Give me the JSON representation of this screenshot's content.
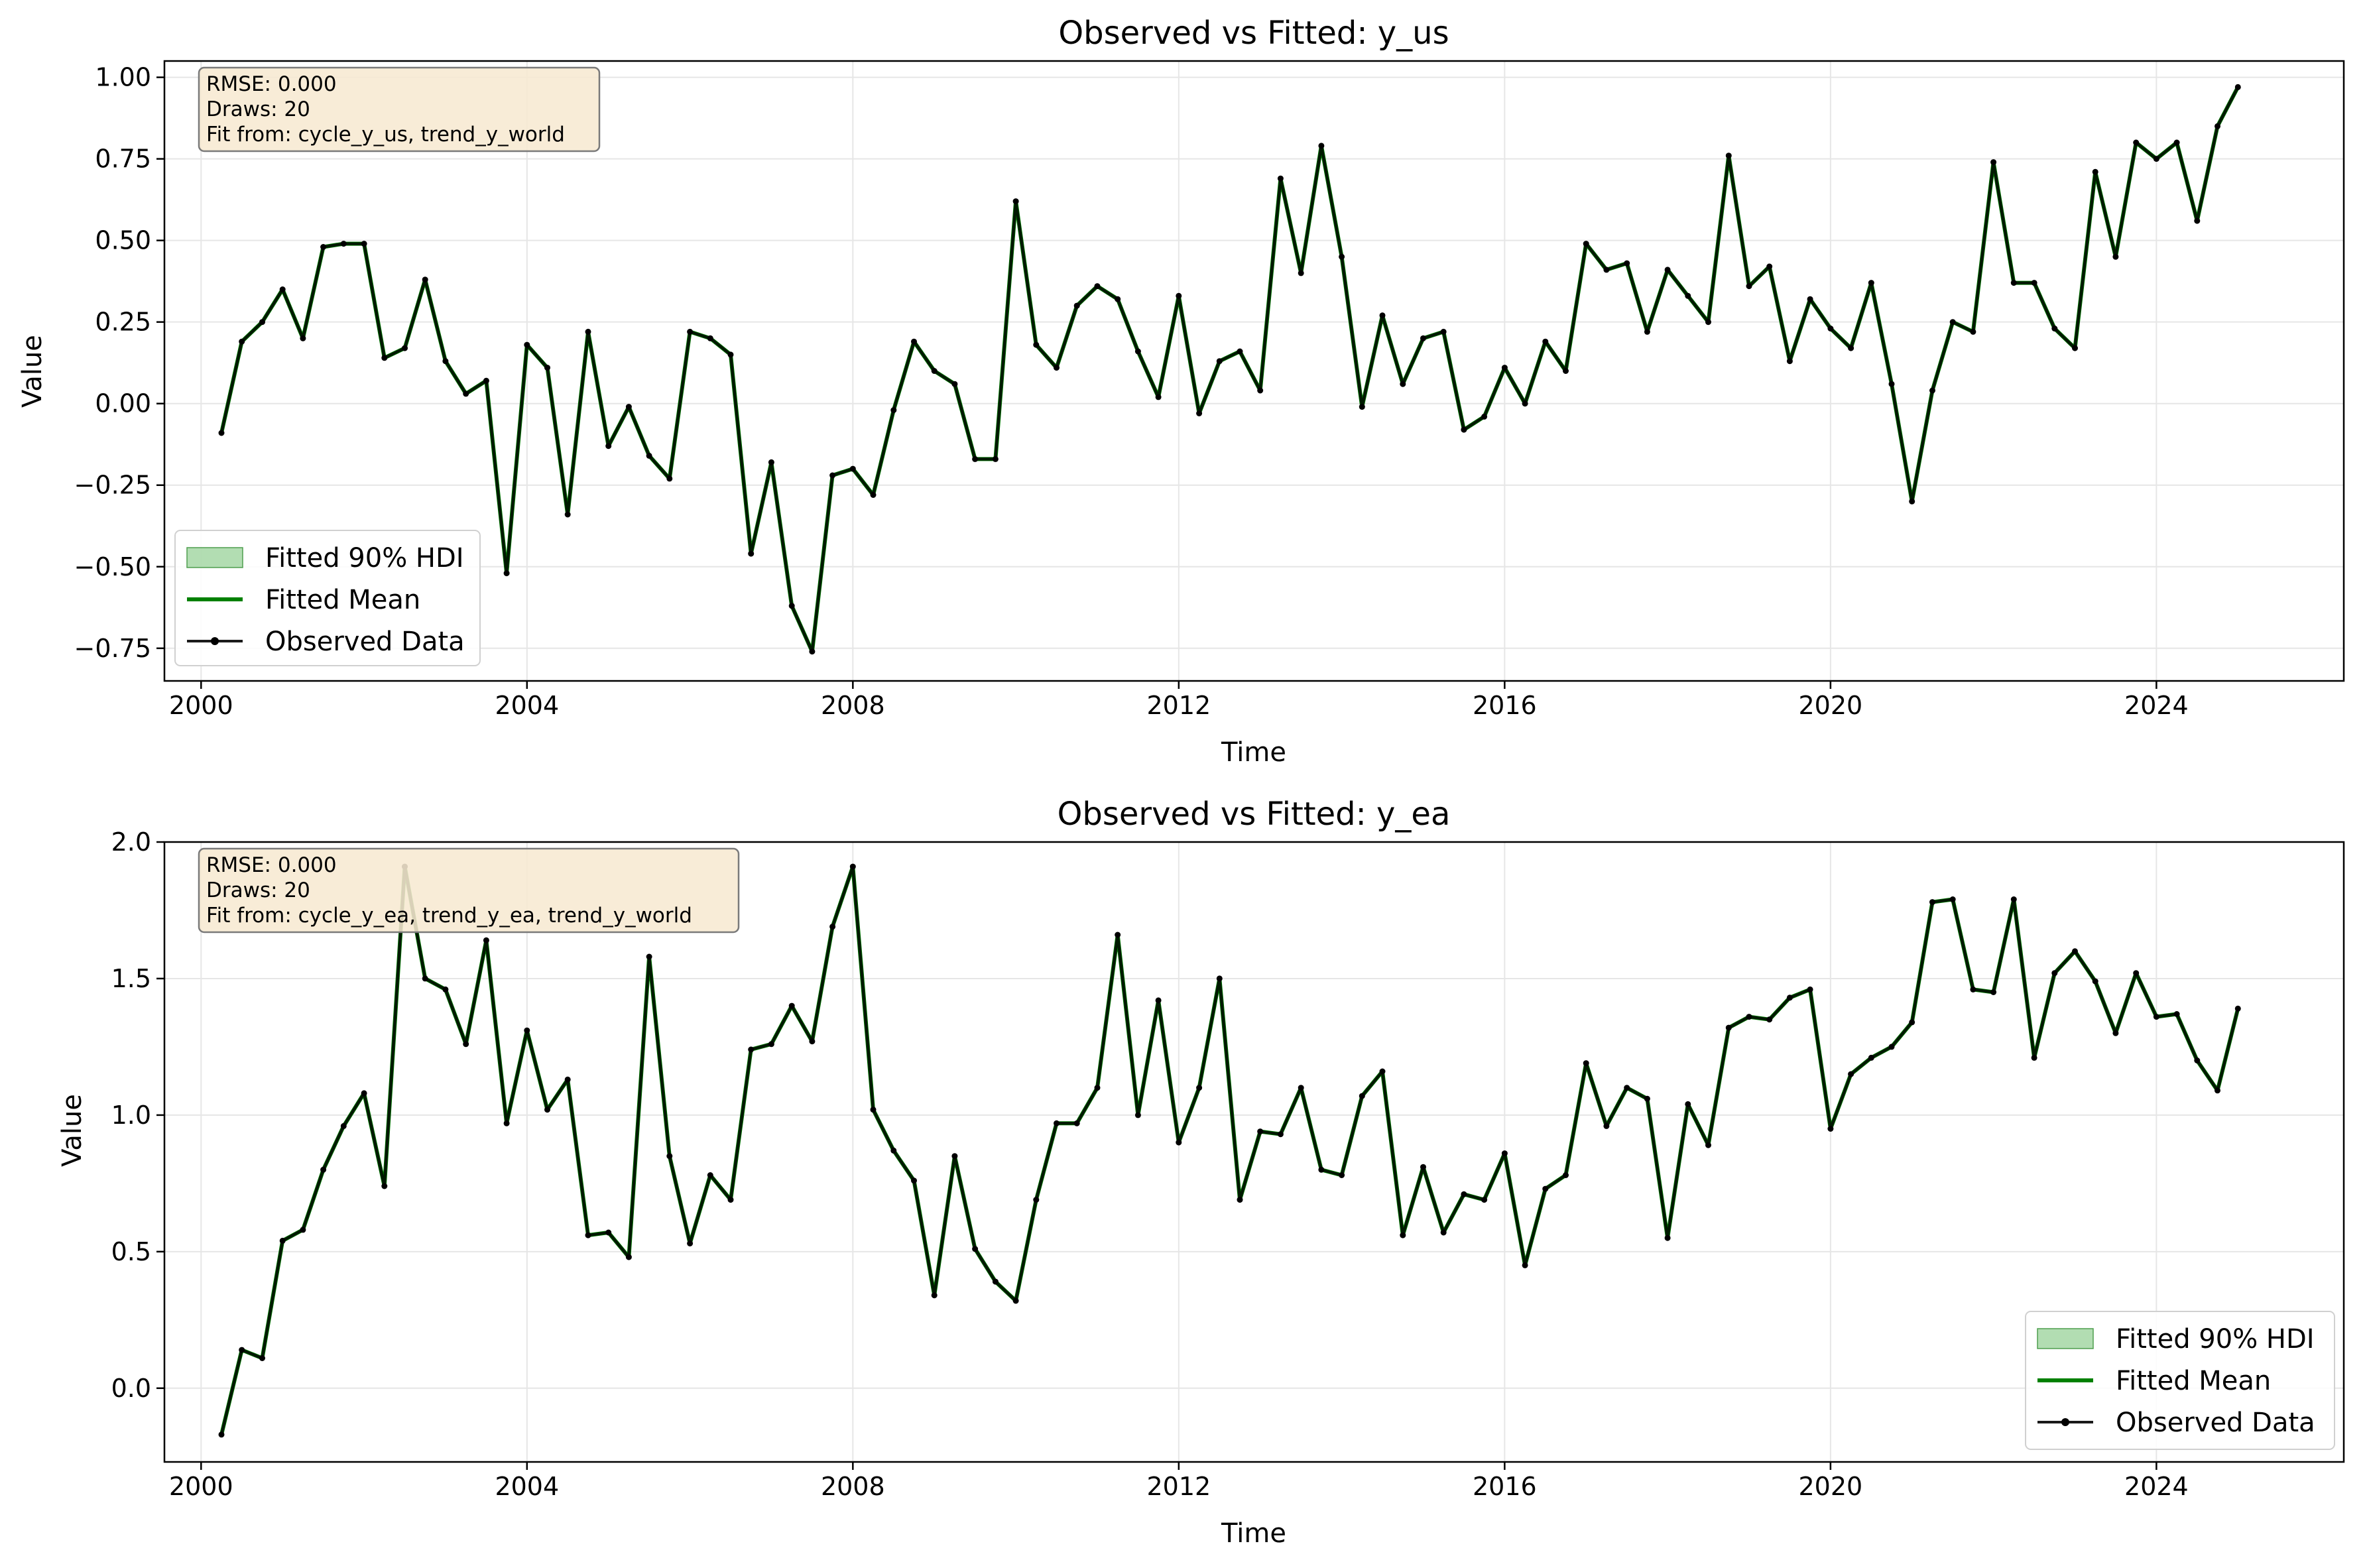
{
  "colors": {
    "fitted_mean": "#008000",
    "hdi_fill": "#7fc77f",
    "observed": "#000000",
    "grid": "#e6e6e6",
    "info_box_fill": "#f7e9d1",
    "info_box_edge": "#7a7a7a"
  },
  "chart_data": [
    {
      "type": "line",
      "title": "Observed vs Fitted: y_us",
      "xlabel": "Time",
      "ylabel": "Value",
      "xlim": [
        1999.55,
        2026.3
      ],
      "ylim": [
        -0.85,
        1.05
      ],
      "xticks": [
        2000,
        2004,
        2008,
        2012,
        2016,
        2020,
        2024
      ],
      "xtick_labels": [
        "2000",
        "2004",
        "2008",
        "2012",
        "2016",
        "2020",
        "2024"
      ],
      "yticks": [
        -0.75,
        -0.5,
        -0.25,
        0.0,
        0.25,
        0.5,
        0.75,
        1.0
      ],
      "ytick_labels": [
        "−0.75",
        "−0.50",
        "−0.25",
        "0.00",
        "0.25",
        "0.50",
        "0.75",
        "1.00"
      ],
      "grid": true,
      "legend_placement": "lower-left",
      "legend": [
        "Fitted 90% HDI",
        "Fitted Mean",
        "Observed Data"
      ],
      "info_box": [
        "RMSE: 0.000",
        "Draws: 20",
        "Fit from: cycle_y_us, trend_y_world"
      ],
      "x_start": 2000.25,
      "x_step": 0.25,
      "series": [
        {
          "name": "Observed Data",
          "values": [
            -0.09,
            0.19,
            0.25,
            0.35,
            0.2,
            0.48,
            0.49,
            0.49,
            0.14,
            0.17,
            0.38,
            0.13,
            0.03,
            0.07,
            -0.52,
            0.18,
            0.11,
            -0.34,
            0.22,
            -0.13,
            -0.01,
            -0.16,
            -0.23,
            0.22,
            0.2,
            0.15,
            -0.46,
            -0.18,
            -0.62,
            -0.76,
            -0.22,
            -0.2,
            -0.28,
            -0.02,
            0.19,
            0.1,
            0.06,
            -0.17,
            -0.17,
            0.62,
            0.18,
            0.11,
            0.3,
            0.36,
            0.32,
            0.16,
            0.02,
            0.33,
            -0.03,
            0.13,
            0.16,
            0.04,
            0.69,
            0.4,
            0.79,
            0.45,
            -0.01,
            0.27,
            0.06,
            0.2,
            0.22,
            -0.08,
            -0.04,
            0.11,
            -0.0,
            0.19,
            0.1,
            0.49,
            0.41,
            0.43,
            0.22,
            0.41,
            0.33,
            0.25,
            0.76,
            0.36,
            0.42,
            0.13,
            0.32,
            0.23,
            0.17,
            0.37,
            0.06,
            -0.3,
            0.04,
            0.25,
            0.22,
            0.74,
            0.37,
            0.37,
            0.23,
            0.17,
            0.71,
            0.45,
            0.8,
            0.75,
            0.8,
            0.56,
            0.85,
            0.97
          ]
        }
      ]
    },
    {
      "type": "line",
      "title": "Observed vs Fitted: y_ea",
      "xlabel": "Time",
      "ylabel": "Value",
      "xlim": [
        1999.55,
        2026.3
      ],
      "ylim": [
        -0.27,
        2.0
      ],
      "xticks": [
        2000,
        2004,
        2008,
        2012,
        2016,
        2020,
        2024
      ],
      "xtick_labels": [
        "2000",
        "2004",
        "2008",
        "2012",
        "2016",
        "2020",
        "2024"
      ],
      "yticks": [
        0.0,
        0.5,
        1.0,
        1.5,
        2.0
      ],
      "ytick_labels": [
        "0.0",
        "0.5",
        "1.0",
        "1.5",
        "2.0"
      ],
      "grid": true,
      "legend_placement": "lower-right",
      "legend": [
        "Fitted 90% HDI",
        "Fitted Mean",
        "Observed Data"
      ],
      "info_box": [
        "RMSE: 0.000",
        "Draws: 20",
        "Fit from: cycle_y_ea, trend_y_ea, trend_y_world"
      ],
      "x_start": 2000.25,
      "x_step": 0.25,
      "series": [
        {
          "name": "Observed Data",
          "values": [
            -0.17,
            0.14,
            0.11,
            0.54,
            0.58,
            0.8,
            0.96,
            1.08,
            0.74,
            1.91,
            1.5,
            1.46,
            1.26,
            1.64,
            0.97,
            1.31,
            1.02,
            1.13,
            0.56,
            0.57,
            0.48,
            1.58,
            0.85,
            0.53,
            0.78,
            0.69,
            1.24,
            1.26,
            1.4,
            1.27,
            1.69,
            1.91,
            1.02,
            0.87,
            0.76,
            0.34,
            0.85,
            0.51,
            0.39,
            0.32,
            0.69,
            0.97,
            0.97,
            1.1,
            1.66,
            1.0,
            1.42,
            0.9,
            1.1,
            1.5,
            0.69,
            0.94,
            0.93,
            1.1,
            0.8,
            0.78,
            1.07,
            1.16,
            0.56,
            0.81,
            0.57,
            0.71,
            0.69,
            0.86,
            0.45,
            0.73,
            0.78,
            1.19,
            0.96,
            1.1,
            1.06,
            0.55,
            1.04,
            0.89,
            1.32,
            1.36,
            1.35,
            1.43,
            1.46,
            0.95,
            1.15,
            1.21,
            1.25,
            1.34,
            1.78,
            1.79,
            1.46,
            1.45,
            1.79,
            1.21,
            1.52,
            1.6,
            1.49,
            1.3,
            1.52,
            1.36,
            1.37,
            1.2,
            1.09,
            1.39
          ]
        }
      ]
    }
  ]
}
